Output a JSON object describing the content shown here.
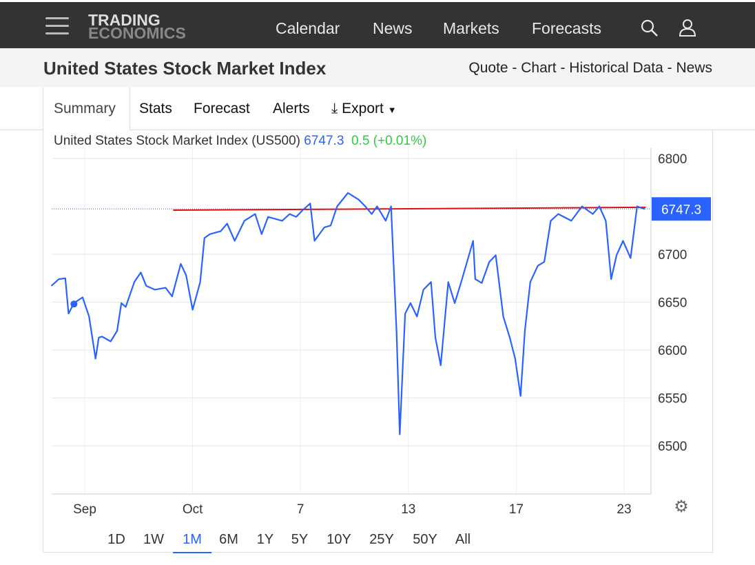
{
  "header": {
    "logo_line1": "TRADING",
    "logo_line2": "ECONOMICS",
    "nav": [
      "Calendar",
      "News",
      "Markets",
      "Forecasts"
    ]
  },
  "page": {
    "title": "United States Stock Market Index",
    "links": "Quote - Chart - Historical Data - News"
  },
  "tabs": [
    "Summary",
    "Stats",
    "Forecast",
    "Alerts",
    "Export"
  ],
  "legend": {
    "name": "United States Stock Market Index (US500)",
    "price": "6747.3",
    "change": "0.5 (+0.01%)"
  },
  "ranges": [
    "1D",
    "1W",
    "1M",
    "6M",
    "1Y",
    "5Y",
    "10Y",
    "25Y",
    "50Y",
    "All"
  ],
  "active_range": "1M",
  "colors": {
    "line": "#2962ff",
    "resistance": "#e01010",
    "change": "#2ecc40",
    "header": "#333333"
  },
  "chart_data": {
    "type": "line",
    "title": "United States Stock Market Index (US500)",
    "xlabel": "",
    "ylabel": "",
    "x_ticks": [
      "Sep",
      "Oct",
      "7",
      "13",
      "17",
      "23"
    ],
    "x_unit": "tick index (0=Sep,1=Oct,2=7,3=13,4=17,5=23)",
    "xlim": [
      -0.31,
      5.22
    ],
    "y_ticks": [
      6500,
      6550,
      6600,
      6650,
      6700,
      6750,
      6800
    ],
    "y_tick_labels": [
      "6500",
      "6550",
      "6600",
      "6650",
      "6700",
      "6800"
    ],
    "ylim": [
      6450,
      6805
    ],
    "last_value": 6747.3,
    "last_label": "6747.3",
    "resistance_line": {
      "x": [
        0.82,
        5.2
      ],
      "y": [
        6746,
        6749
      ]
    },
    "marker": {
      "x": -0.1,
      "y": 6648
    },
    "series": [
      {
        "name": "US500",
        "points": [
          [
            -0.31,
            6667
          ],
          [
            -0.24,
            6674
          ],
          [
            -0.18,
            6675
          ],
          [
            -0.15,
            6638
          ],
          [
            -0.1,
            6649
          ],
          [
            -0.02,
            6655
          ],
          [
            0.04,
            6635
          ],
          [
            0.1,
            6591
          ],
          [
            0.13,
            6613
          ],
          [
            0.16,
            6614
          ],
          [
            0.24,
            6609
          ],
          [
            0.3,
            6620
          ],
          [
            0.34,
            6649
          ],
          [
            0.38,
            6645
          ],
          [
            0.46,
            6671
          ],
          [
            0.52,
            6681
          ],
          [
            0.57,
            6667
          ],
          [
            0.65,
            6663
          ],
          [
            0.75,
            6665
          ],
          [
            0.81,
            6656
          ],
          [
            0.89,
            6690
          ],
          [
            0.94,
            6678
          ],
          [
            1.0,
            6642
          ],
          [
            1.07,
            6671
          ],
          [
            1.11,
            6717
          ],
          [
            1.16,
            6721
          ],
          [
            1.26,
            6724
          ],
          [
            1.32,
            6732
          ],
          [
            1.39,
            6714
          ],
          [
            1.48,
            6735
          ],
          [
            1.58,
            6742
          ],
          [
            1.64,
            6721
          ],
          [
            1.7,
            6739
          ],
          [
            1.83,
            6735
          ],
          [
            1.9,
            6742
          ],
          [
            1.96,
            6739
          ],
          [
            2.02,
            6746
          ],
          [
            2.09,
            6753
          ],
          [
            2.13,
            6714
          ],
          [
            2.22,
            6728
          ],
          [
            2.28,
            6730
          ],
          [
            2.34,
            6750
          ],
          [
            2.44,
            6764
          ],
          [
            2.54,
            6757
          ],
          [
            2.6,
            6750
          ],
          [
            2.66,
            6742
          ],
          [
            2.71,
            6750
          ],
          [
            2.79,
            6735
          ],
          [
            2.84,
            6750
          ],
          [
            2.89,
            6620
          ],
          [
            2.92,
            6512
          ],
          [
            2.97,
            6638
          ],
          [
            3.02,
            6649
          ],
          [
            3.08,
            6635
          ],
          [
            3.14,
            6663
          ],
          [
            3.21,
            6671
          ],
          [
            3.25,
            6613
          ],
          [
            3.3,
            6584
          ],
          [
            3.37,
            6671
          ],
          [
            3.43,
            6649
          ],
          [
            3.49,
            6671
          ],
          [
            3.6,
            6714
          ],
          [
            3.62,
            6674
          ],
          [
            3.68,
            6670
          ],
          [
            3.75,
            6692
          ],
          [
            3.81,
            6699
          ],
          [
            3.88,
            6635
          ],
          [
            3.94,
            6613
          ],
          [
            3.99,
            6591
          ],
          [
            4.04,
            6552
          ],
          [
            4.08,
            6620
          ],
          [
            4.13,
            6671
          ],
          [
            4.2,
            6688
          ],
          [
            4.26,
            6692
          ],
          [
            4.32,
            6735
          ],
          [
            4.39,
            6742
          ],
          [
            4.51,
            6735
          ],
          [
            4.61,
            6750
          ],
          [
            4.71,
            6742
          ],
          [
            4.77,
            6750
          ],
          [
            4.83,
            6735
          ],
          [
            4.88,
            6674
          ],
          [
            4.93,
            6699
          ],
          [
            4.99,
            6714
          ],
          [
            5.06,
            6696
          ],
          [
            5.12,
            6750
          ],
          [
            5.19,
            6747.3
          ]
        ]
      }
    ]
  }
}
